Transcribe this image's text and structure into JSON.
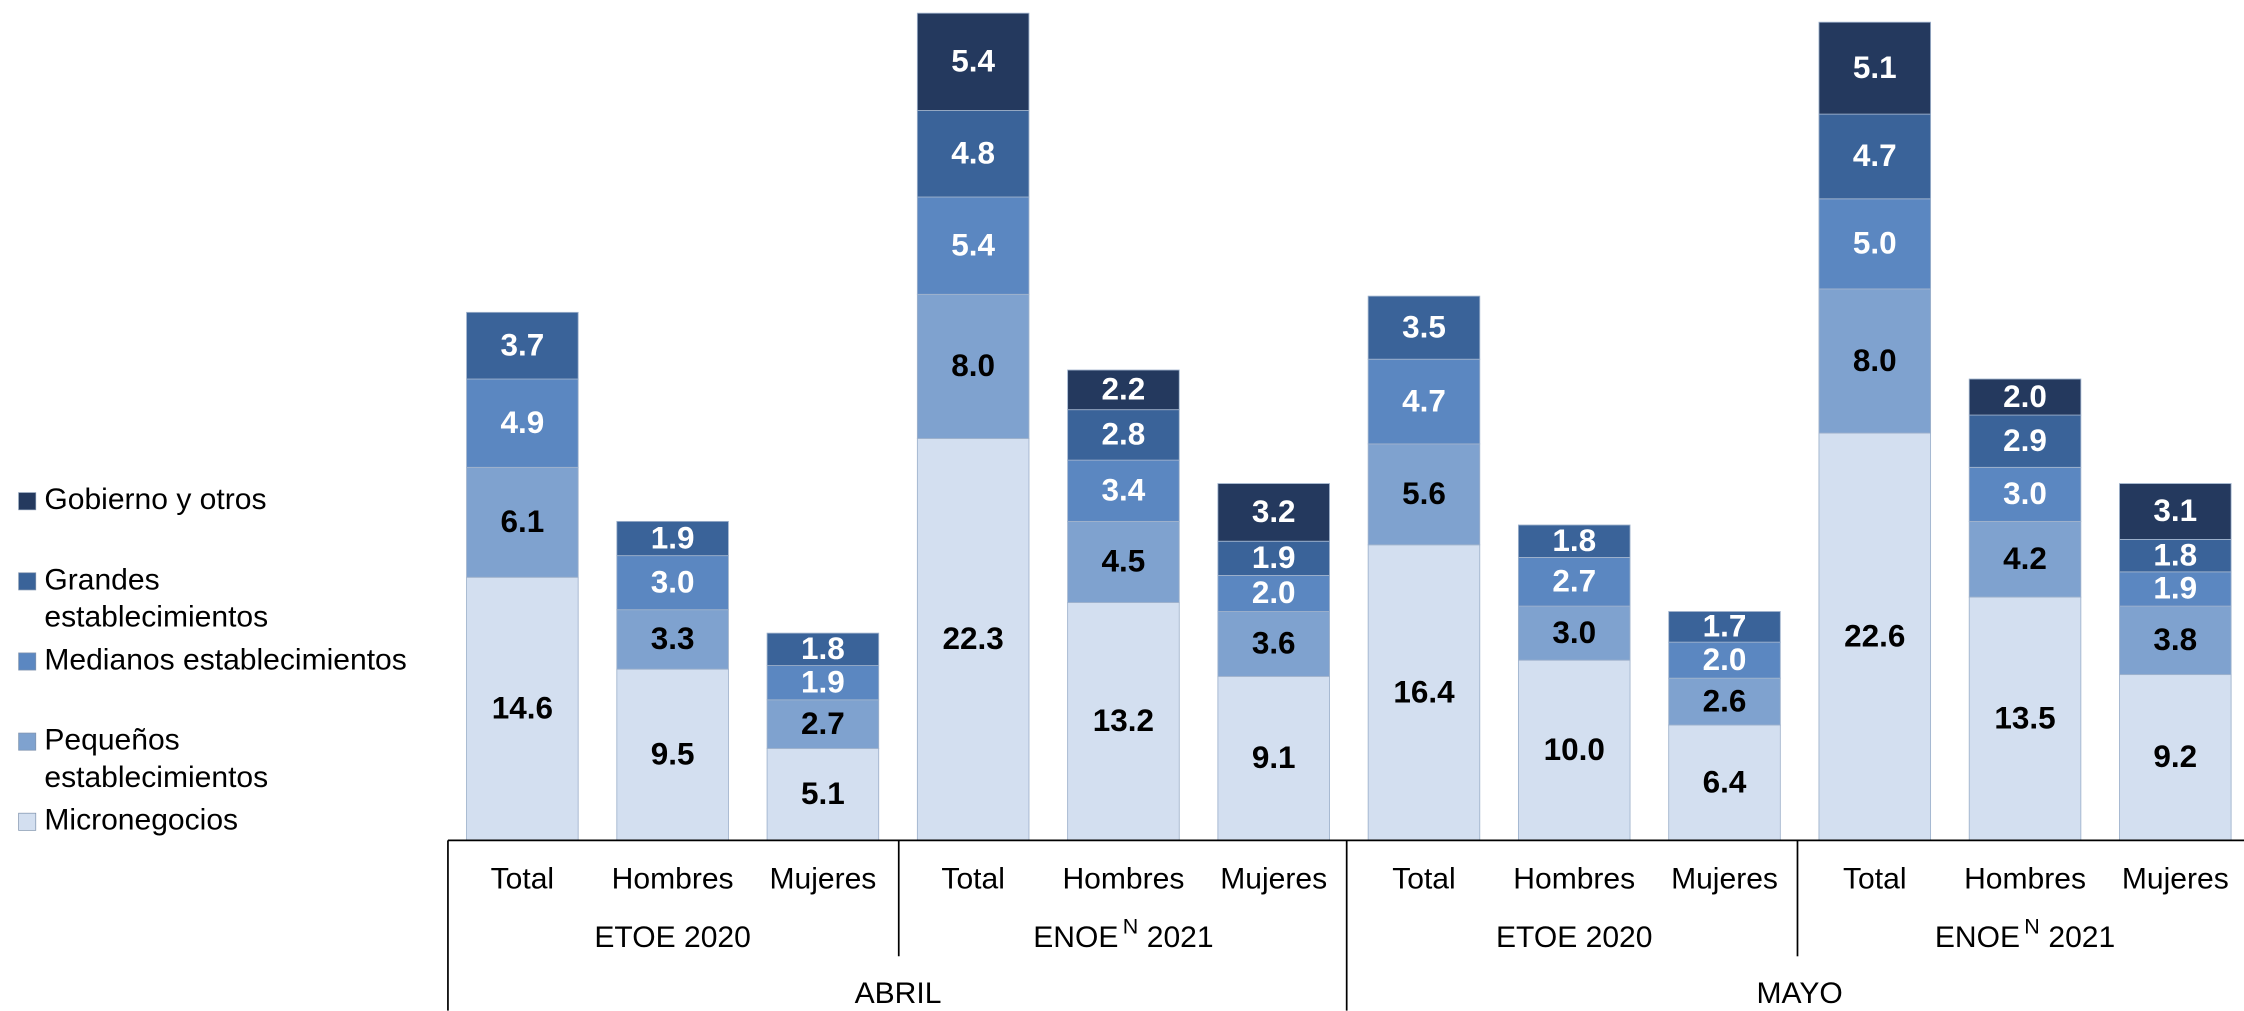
{
  "chart_data": {
    "type": "stacked_bar",
    "categories": [
      "Total",
      "Hombres",
      "Mujeres",
      "Total",
      "Hombres",
      "Mujeres",
      "Total",
      "Hombres",
      "Mujeres",
      "Total",
      "Hombres",
      "Mujeres"
    ],
    "groups": [
      {
        "name": "ETOE 2020"
      },
      {
        "name": "ENOE",
        "sup": "N",
        "year": "2021"
      },
      {
        "name": "ETOE 2020"
      },
      {
        "name": "ENOE",
        "sup": "N",
        "year": "2021"
      }
    ],
    "months": [
      "ABRIL",
      "MAYO"
    ],
    "series": [
      {
        "name": "Micronegocios",
        "color": "#d3dff0",
        "label_color": "#000000",
        "values": [
          14.6,
          9.5,
          5.1,
          22.3,
          13.2,
          9.1,
          16.4,
          10.0,
          6.4,
          22.6,
          13.5,
          9.2
        ],
        "value_labels": [
          "14.6",
          "9.5",
          "5.1",
          "22.3",
          "13.2",
          "9.1",
          "16.4",
          "10.0",
          "6.4",
          "22.6",
          "13.5",
          "9.2"
        ]
      },
      {
        "name": "Pequeños establecimientos",
        "color": "#7fa2cf",
        "label_color": "#000000",
        "values": [
          6.1,
          3.3,
          2.7,
          8.0,
          4.5,
          3.6,
          5.6,
          3.0,
          2.6,
          8.0,
          4.2,
          3.8
        ],
        "value_labels": [
          "6.1",
          "3.3",
          "2.7",
          "8.0",
          "4.5",
          "3.6",
          "5.6",
          "3.0",
          "2.6",
          "8.0",
          "4.2",
          "3.8"
        ]
      },
      {
        "name": "Medianos establecimientos",
        "color": "#5b87c1",
        "label_color": "#ffffff",
        "values": [
          4.9,
          3.0,
          1.9,
          5.4,
          3.4,
          2.0,
          4.7,
          2.7,
          2.0,
          5.0,
          3.0,
          1.9
        ],
        "value_labels": [
          "4.9",
          "3.0",
          "1.9",
          "5.4",
          "3.4",
          "2.0",
          "4.7",
          "2.7",
          "2.0",
          "5.0",
          "3.0",
          "1.9"
        ]
      },
      {
        "name": "Grandes establecimientos",
        "color": "#3a6399",
        "label_color": "#ffffff",
        "values": [
          3.7,
          1.9,
          1.8,
          4.8,
          2.8,
          1.9,
          3.5,
          1.8,
          1.7,
          4.7,
          2.9,
          1.8
        ],
        "value_labels": [
          "3.7",
          "1.9",
          "1.8",
          "4.8",
          "2.8",
          "1.9",
          "3.5",
          "1.8",
          "1.7",
          "4.7",
          "2.9",
          "1.8"
        ]
      },
      {
        "name": "Gobierno y otros",
        "color": "#24395e",
        "label_color": "#ffffff",
        "values": [
          null,
          null,
          null,
          5.4,
          2.2,
          3.2,
          null,
          null,
          null,
          5.1,
          2.0,
          3.1
        ],
        "value_labels": [
          null,
          null,
          null,
          "5.4",
          "2.2",
          "3.2",
          null,
          null,
          null,
          "5.1",
          "2.0",
          "3.1"
        ]
      }
    ]
  }
}
